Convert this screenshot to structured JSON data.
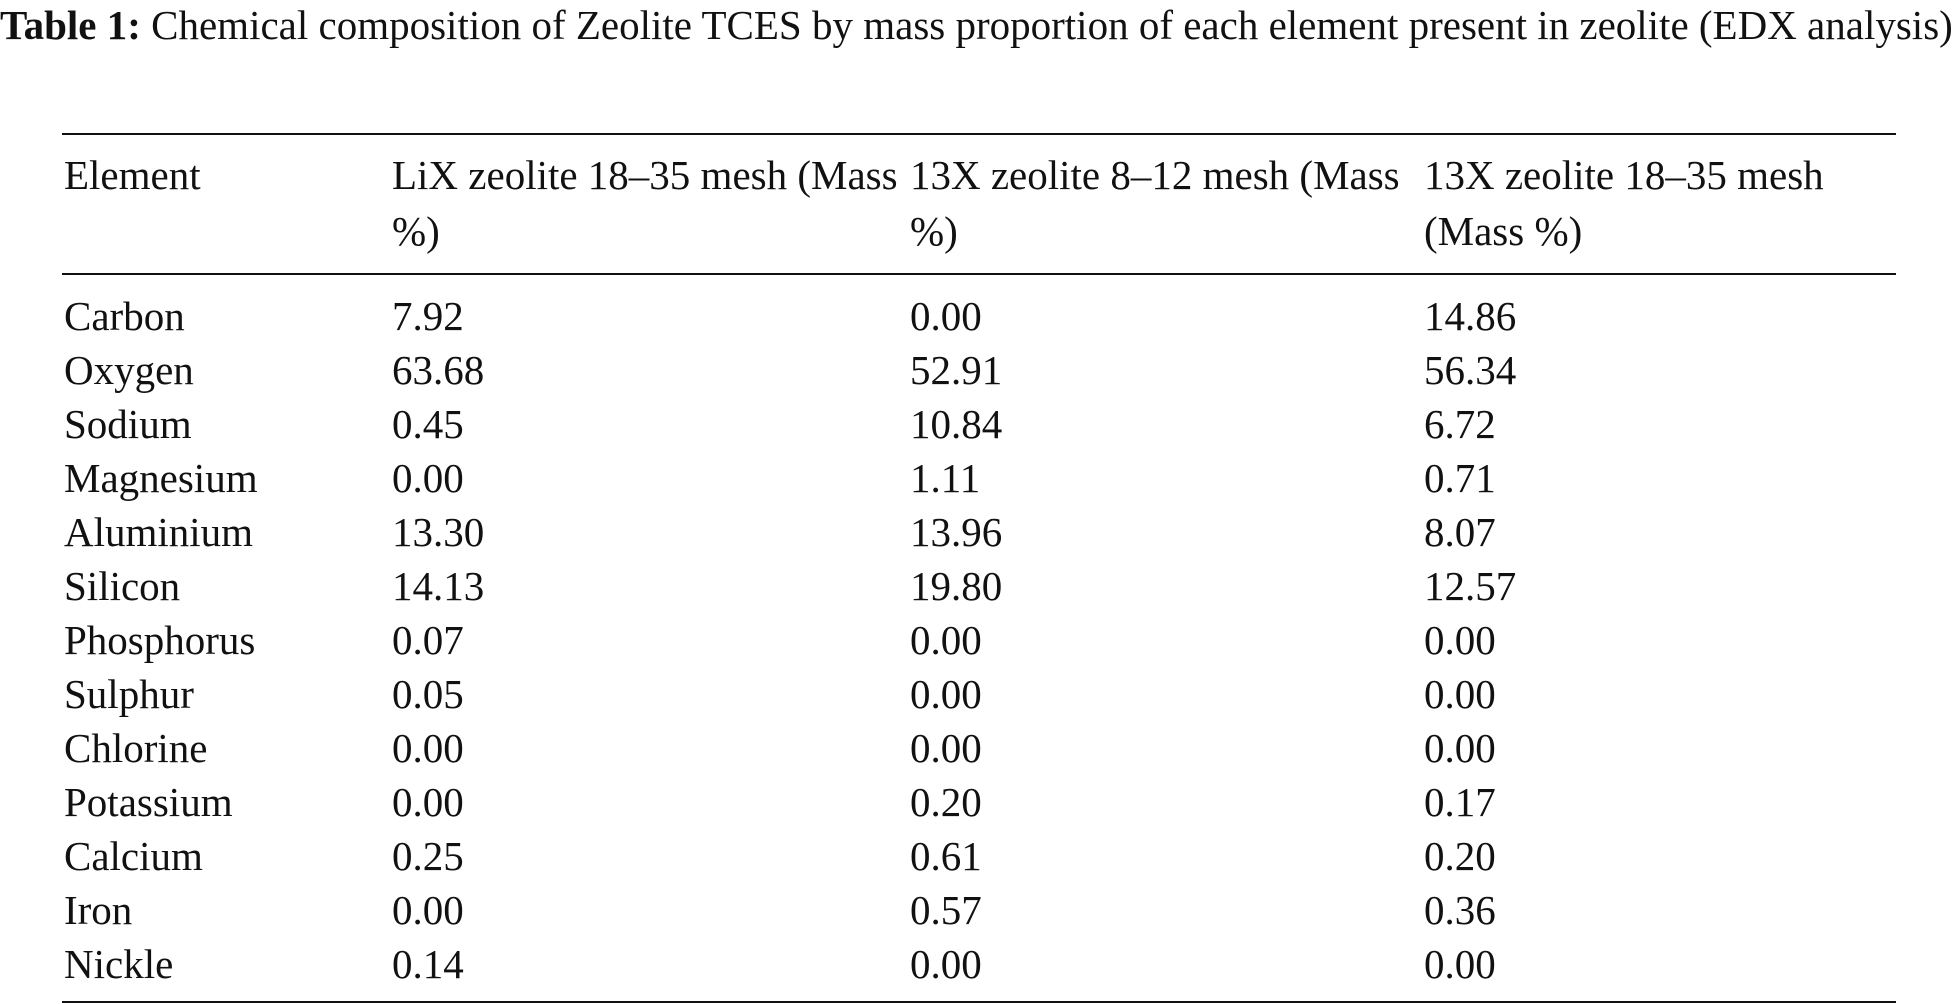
{
  "caption": {
    "label": "Table 1:",
    "text": "Chemical composition of Zeolite TCES by mass proportion of each element present in zeolite (EDX analysis)"
  },
  "table": {
    "headers": [
      "Element",
      "LiX zeolite 18–35 mesh (Mass %)",
      "13X zeolite 8–12 mesh (Mass %)",
      "13X zeolite 18–35 mesh (Mass %)"
    ],
    "rows": [
      [
        "Carbon",
        "7.92",
        "0.00",
        "14.86"
      ],
      [
        "Oxygen",
        "63.68",
        "52.91",
        "56.34"
      ],
      [
        "Sodium",
        "0.45",
        "10.84",
        "6.72"
      ],
      [
        "Magnesium",
        "0.00",
        "1.11",
        "0.71"
      ],
      [
        "Aluminium",
        "13.30",
        "13.96",
        "8.07"
      ],
      [
        "Silicon",
        "14.13",
        "19.80",
        "12.57"
      ],
      [
        "Phosphorus",
        "0.07",
        "0.00",
        "0.00"
      ],
      [
        "Sulphur",
        "0.05",
        "0.00",
        "0.00"
      ],
      [
        "Chlorine",
        "0.00",
        "0.00",
        "0.00"
      ],
      [
        "Potassium",
        "0.00",
        "0.20",
        "0.17"
      ],
      [
        "Calcium",
        "0.25",
        "0.61",
        "0.20"
      ],
      [
        "Iron",
        "0.00",
        "0.57",
        "0.36"
      ],
      [
        "Nickle",
        "0.14",
        "0.00",
        "0.00"
      ]
    ]
  }
}
